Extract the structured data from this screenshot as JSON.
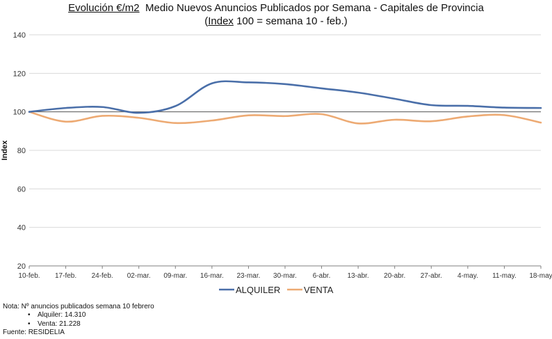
{
  "title": {
    "line1_prefix": "Evolución €/m2",
    "line1_rest": "Medio Nuevos Anuncios Publicados por Semana - Capitales de Provincia",
    "line2_open": "(",
    "line2_index": "Index",
    "line2_rest": " 100 = semana 10 - feb.)"
  },
  "colors": {
    "alquiler": "#4a6fa9",
    "venta": "#edaa73",
    "reference_line": "#5a5a5a",
    "axis": "#7f7f7f"
  },
  "chart_data": {
    "type": "line",
    "categories": [
      "10-feb.",
      "17-feb.",
      "24-feb.",
      "02-mar.",
      "09-mar.",
      "16-mar.",
      "23-mar.",
      "30-mar.",
      "6-abr.",
      "13-abr.",
      "20-abr.",
      "27-abr.",
      "4-may.",
      "11-may.",
      "18-may"
    ],
    "series": [
      {
        "name": "ALQUILER",
        "values": [
          100.0,
          102.0,
          102.5,
          99.5,
          103.0,
          114.8,
          115.3,
          114.4,
          112.2,
          110.0,
          106.8,
          103.5,
          103.1,
          102.2,
          102.0
        ]
      },
      {
        "name": "VENTA",
        "values": [
          100.0,
          94.9,
          97.9,
          96.9,
          94.2,
          95.5,
          98.2,
          97.8,
          98.8,
          94.0,
          95.9,
          95.1,
          97.6,
          98.3,
          94.4
        ]
      }
    ],
    "reference_value": 100,
    "ylabel": "Index",
    "ylim": [
      20,
      140
    ],
    "yticks": [
      20,
      40,
      60,
      80,
      100,
      120,
      140
    ],
    "grid": true,
    "legend": "bottom-center"
  },
  "notes": {
    "line1": "Nota: Nº anuncios publicados semana 10 febrero",
    "alquiler": "Alquiler: 14.310",
    "venta": "Venta:  21.228",
    "source": "Fuente: RESIDELIA"
  }
}
